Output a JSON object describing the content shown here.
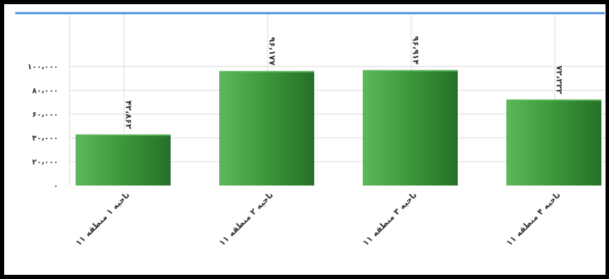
{
  "chart_data": {
    "type": "bar",
    "categories": [
      "ناحیه ۱ منطقه ۱۱",
      "ناحیه ۲ منطقه ۱۱",
      "ناحیه ۳ منطقه ۱۱",
      "ناحیه ۴ منطقه ۱۱"
    ],
    "values": [
      42862,
      96177,
      96914,
      72222
    ],
    "value_labels": [
      "۴۲،۸۶۲",
      "۹۶،۱۷۷",
      "۹۶،۹۱۴",
      "۷۲،۲۲۲"
    ],
    "yticks": [
      0,
      20000,
      40000,
      60000,
      80000,
      100000
    ],
    "ytick_labels": [
      "۰",
      "۲۰،۰۰۰",
      "۴۰،۰۰۰",
      "۶۰،۰۰۰",
      "۸۰،۰۰۰",
      "۱۰۰،۰۰۰"
    ],
    "ylim": [
      0,
      100000
    ],
    "grid": true,
    "title": "",
    "xlabel": "",
    "ylabel": "",
    "colors": {
      "bar_light": "#5cb85c",
      "bar_mid": "#3f9a3a",
      "bar_dark": "#25702a",
      "grid": "#d8d8d8",
      "top_line": "#4a90d9",
      "frame": "#000000"
    }
  }
}
